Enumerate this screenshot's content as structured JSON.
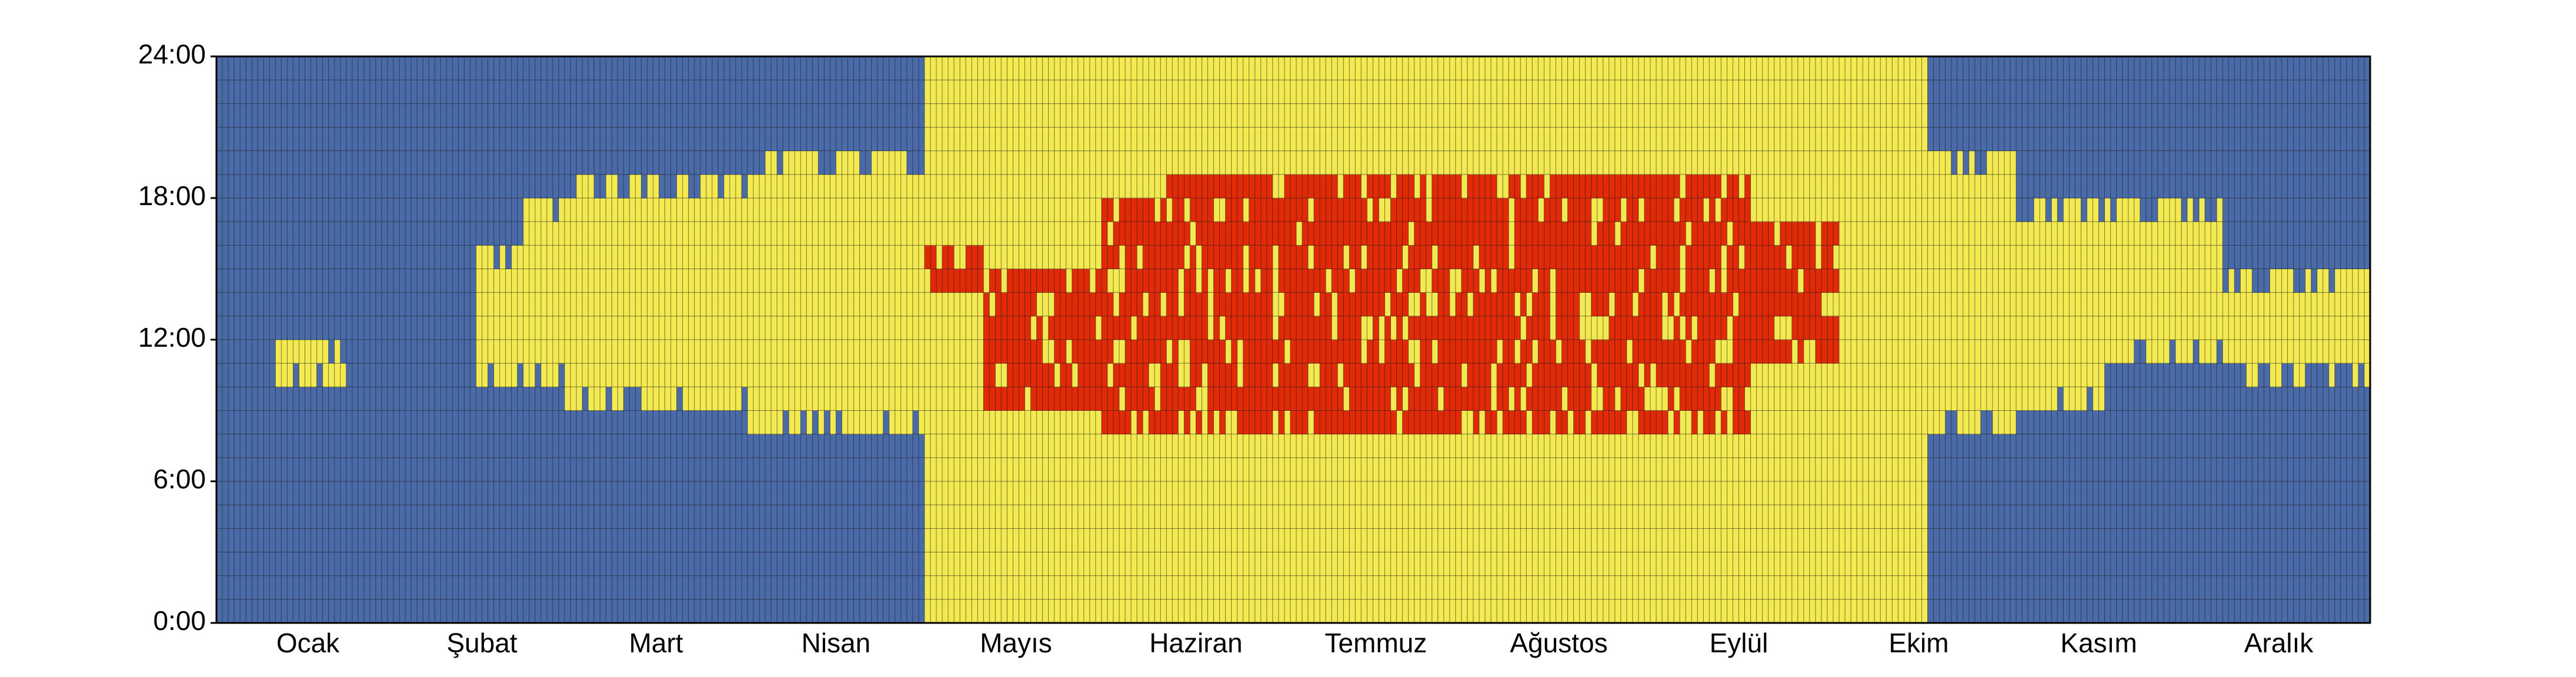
{
  "chart_data": {
    "type": "heatmap",
    "title": "",
    "xlabel": "",
    "ylabel": "",
    "x_tick_labels": [
      "Ocak",
      "Şubat",
      "Mart",
      "Nisan",
      "Mayıs",
      "Haziran",
      "Temmuz",
      "Ağustos",
      "Eylül",
      "Ekim",
      "Kasım",
      "Aralık"
    ],
    "y_tick_labels": [
      "0:00",
      "6:00",
      "12:00",
      "18:00",
      "24:00"
    ],
    "y_tick_values": [
      0,
      6,
      12,
      18,
      24
    ],
    "ylim": [
      0,
      24
    ],
    "days_per_month": [
      31,
      28,
      31,
      30,
      31,
      30,
      31,
      31,
      30,
      31,
      30,
      31
    ],
    "hours_per_day": 24,
    "grid": true,
    "colors": {
      "cold": "#4a6aa8",
      "mild": "#f2ea50",
      "hot": "#e02a08",
      "gridline": "#1a1a1a",
      "axis": "#000000"
    },
    "categories": [
      "cold",
      "mild",
      "hot"
    ],
    "category_bands": [
      {
        "from_day": 1,
        "to_day": 10,
        "hot": null,
        "mild": null
      },
      {
        "from_day": 11,
        "to_day": 22,
        "hot": null,
        "mild": [
          10,
          12
        ]
      },
      {
        "from_day": 23,
        "to_day": 31,
        "hot": null,
        "mild": null
      },
      {
        "from_day": 32,
        "to_day": 44,
        "hot": null,
        "mild": null
      },
      {
        "from_day": 45,
        "to_day": 52,
        "hot": null,
        "mild": [
          10,
          16
        ]
      },
      {
        "from_day": 53,
        "to_day": 59,
        "hot": null,
        "mild": [
          10,
          18
        ]
      },
      {
        "from_day": 60,
        "to_day": 90,
        "hot": null,
        "mild": [
          9,
          19
        ]
      },
      {
        "from_day": 91,
        "to_day": 120,
        "hot": null,
        "mild": [
          8,
          20
        ]
      },
      {
        "from_day": 121,
        "to_day": 130,
        "hot": [
          14,
          16
        ],
        "mild": [
          0,
          24
        ]
      },
      {
        "from_day": 131,
        "to_day": 150,
        "hot": [
          9,
          15
        ],
        "mild": [
          0,
          24
        ]
      },
      {
        "from_day": 151,
        "to_day": 160,
        "hot": [
          8,
          18
        ],
        "mild": [
          0,
          24
        ]
      },
      {
        "from_day": 161,
        "to_day": 260,
        "hot": [
          8,
          19
        ],
        "mild": [
          0,
          24
        ]
      },
      {
        "from_day": 261,
        "to_day": 275,
        "hot": [
          11,
          17
        ],
        "mild": [
          0,
          24
        ]
      },
      {
        "from_day": 276,
        "to_day": 290,
        "hot": null,
        "mild": [
          0,
          24
        ]
      },
      {
        "from_day": 291,
        "to_day": 305,
        "hot": null,
        "mild": [
          8,
          20
        ]
      },
      {
        "from_day": 306,
        "to_day": 320,
        "hot": null,
        "mild": [
          9,
          18
        ]
      },
      {
        "from_day": 321,
        "to_day": 340,
        "hot": null,
        "mild": [
          11,
          18
        ]
      },
      {
        "from_day": 341,
        "to_day": 365,
        "hot": null,
        "mild": [
          10,
          15
        ]
      }
    ]
  }
}
